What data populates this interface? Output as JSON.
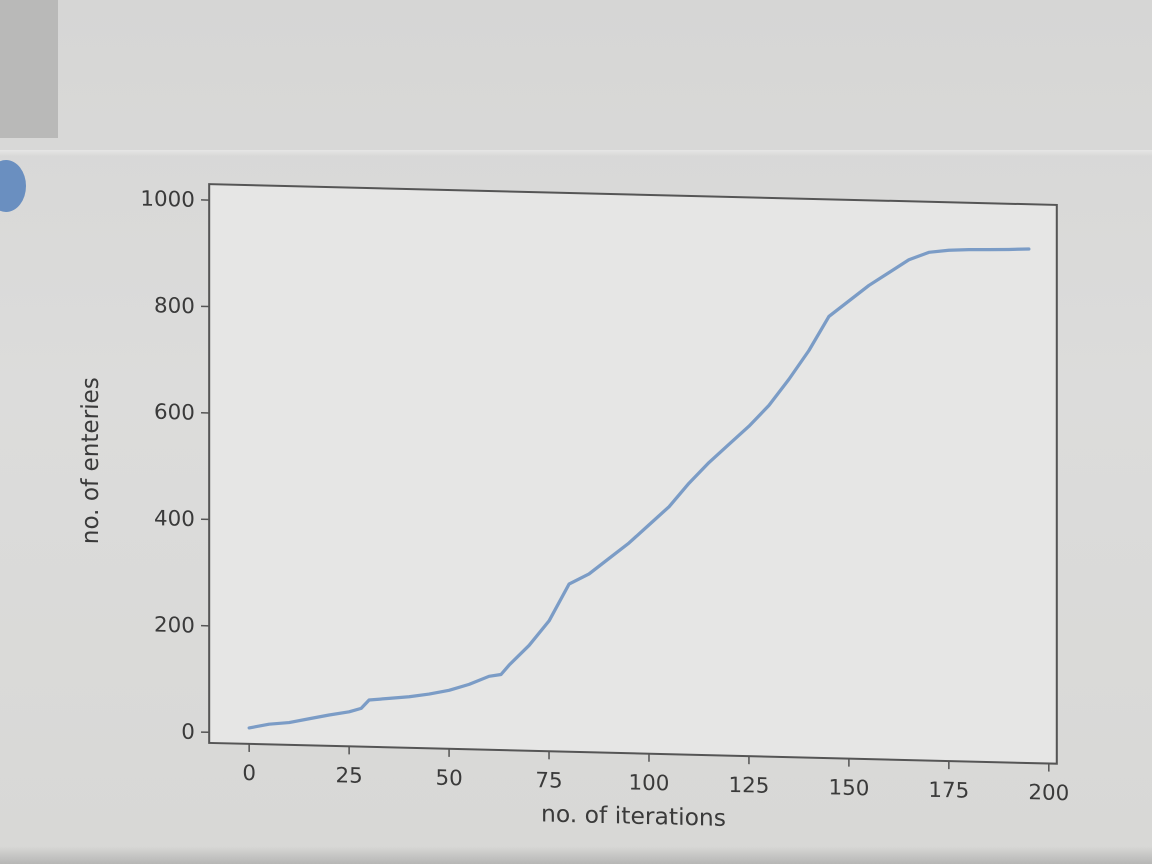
{
  "chart_data": {
    "type": "line",
    "title": "",
    "xlabel": "no. of iterations",
    "ylabel": "no. of enteries",
    "xlim": [
      -10,
      202
    ],
    "ylim": [
      -20,
      1030
    ],
    "x_ticks": [
      0,
      25,
      50,
      75,
      100,
      125,
      150,
      175,
      200
    ],
    "y_ticks": [
      0,
      200,
      400,
      600,
      800,
      1000
    ],
    "grid": false,
    "legend": "none",
    "series": [
      {
        "color": "#7b9cc6",
        "x": [
          0,
          5,
          10,
          15,
          20,
          25,
          28,
          30,
          35,
          40,
          45,
          50,
          55,
          60,
          63,
          65,
          70,
          75,
          80,
          85,
          90,
          95,
          100,
          105,
          110,
          115,
          120,
          125,
          130,
          135,
          140,
          145,
          150,
          155,
          160,
          165,
          170,
          175,
          180,
          185,
          190,
          195
        ],
        "y": [
          10,
          18,
          22,
          30,
          38,
          45,
          52,
          68,
          72,
          76,
          82,
          90,
          102,
          118,
          122,
          140,
          178,
          225,
          295,
          315,
          345,
          375,
          410,
          445,
          490,
          530,
          565,
          600,
          640,
          690,
          745,
          810,
          840,
          870,
          895,
          920,
          935,
          940,
          942,
          943,
          944,
          946
        ]
      }
    ]
  }
}
